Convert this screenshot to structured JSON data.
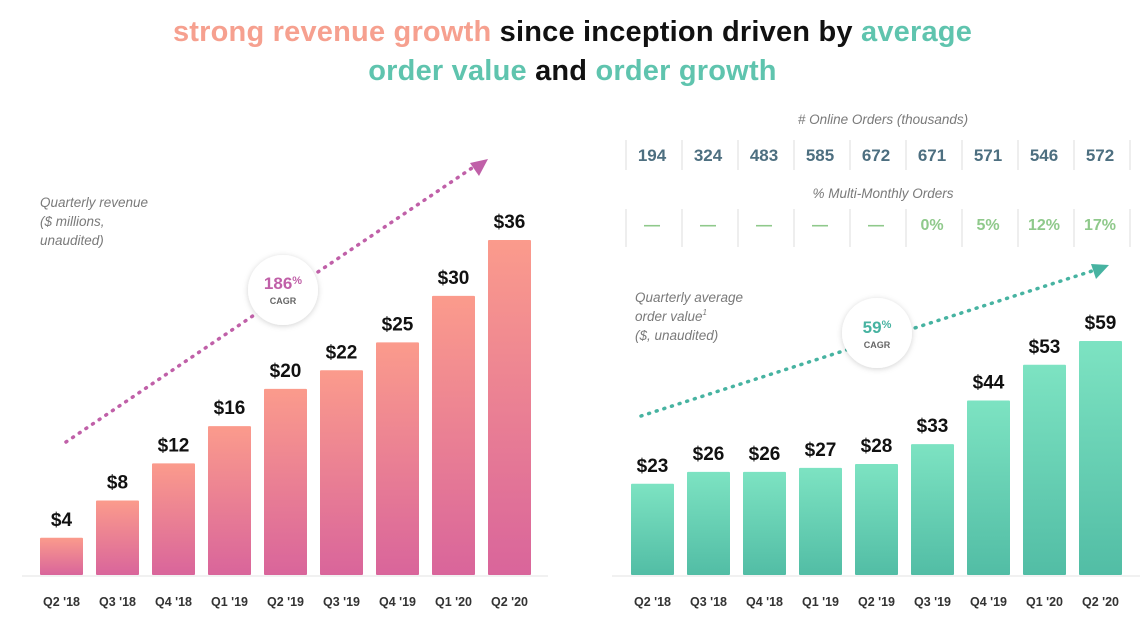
{
  "title": {
    "line1_part1": "strong revenue growth",
    "line1_part2": " since inception driven by ",
    "line1_part3": "average",
    "line2_part1": "order value",
    "line2_part2": " and ",
    "line2_part3": "order growth"
  },
  "colors": {
    "salmon": "#f6a08f",
    "teal": "#5fc4ae",
    "revenue_cagr": "#c060a8",
    "aov_cagr": "#47b3a1"
  },
  "chart_data": [
    {
      "type": "bar",
      "title": "Quarterly revenue ($ millions, unaudited)",
      "caption_lines": [
        "Quarterly revenue",
        "($ millions,",
        "unaudited)"
      ],
      "categories": [
        "Q2 '18",
        "Q3 '18",
        "Q4 '18",
        "Q1 '19",
        "Q2 '19",
        "Q3 '19",
        "Q4 '19",
        "Q1 '20",
        "Q2 '20"
      ],
      "values": [
        4,
        8,
        12,
        16,
        20,
        22,
        25,
        30,
        36
      ],
      "value_labels": [
        "$4",
        "$8",
        "$12",
        "$16",
        "$20",
        "$22",
        "$25",
        "$30",
        "$36"
      ],
      "ylim": [
        0,
        36
      ],
      "cagr": {
        "value": "186",
        "unit": "%",
        "label": "CAGR"
      }
    },
    {
      "type": "bar",
      "title": "Quarterly average order value ($, unaudited)",
      "caption_lines": [
        "Quarterly average",
        "order value",
        "($, unaudited)"
      ],
      "caption_superscript": "1",
      "categories": [
        "Q2 '18",
        "Q3 '18",
        "Q4 '18",
        "Q1 '19",
        "Q2 '19",
        "Q3 '19",
        "Q4 '19",
        "Q1 '20",
        "Q2 '20"
      ],
      "values": [
        23,
        26,
        26,
        27,
        28,
        33,
        44,
        53,
        59
      ],
      "value_labels": [
        "$23",
        "$26",
        "$26",
        "$27",
        "$28",
        "$33",
        "$44",
        "$53",
        "$59"
      ],
      "ylim": [
        0,
        59
      ],
      "cagr": {
        "value": "59",
        "unit": "%",
        "label": "CAGR"
      }
    },
    {
      "type": "table",
      "title": "# Online Orders (thousands)",
      "values": [
        194,
        324,
        483,
        585,
        672,
        671,
        571,
        546,
        572
      ]
    },
    {
      "type": "table",
      "title": "% Multi-Monthly Orders",
      "values": [
        "—",
        "—",
        "—",
        "—",
        "—",
        "0%",
        "5%",
        "12%",
        "17%"
      ]
    }
  ]
}
